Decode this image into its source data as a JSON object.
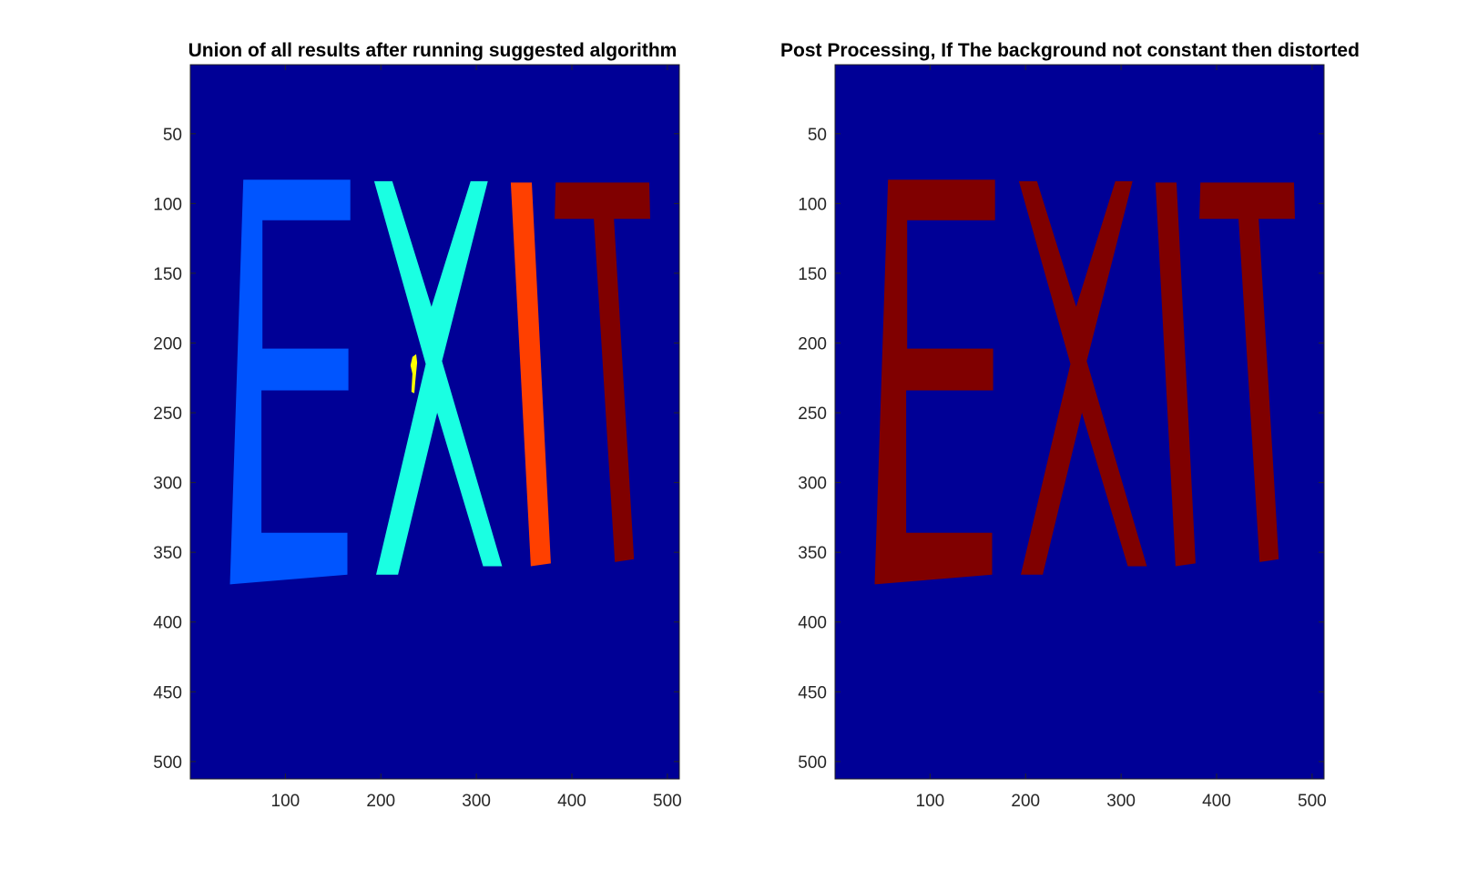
{
  "figure": {
    "background": "#ffffff",
    "axes_background": "#000096"
  },
  "chart_data": [
    {
      "type": "heatmap",
      "title": "Union of all results after running suggested algorithm",
      "xlabel": "",
      "ylabel": "",
      "xlim": [
        0.5,
        512.5
      ],
      "ylim": [
        0.5,
        512.5
      ],
      "y_reversed": true,
      "xticks": [
        100,
        200,
        300,
        400,
        500
      ],
      "yticks": [
        50,
        100,
        150,
        200,
        250,
        300,
        350,
        400,
        450,
        500
      ],
      "grid": false,
      "legend": "none",
      "background_color": "#000096",
      "regions": [
        {
          "letter": "E",
          "color": "#0055ff",
          "polygons": [
            [
              [
                56,
                83
              ],
              [
                168,
                83
              ],
              [
                168,
                112
              ],
              [
                76,
                112
              ],
              [
                76,
                204
              ],
              [
                166,
                204
              ],
              [
                166,
                234
              ],
              [
                75,
                234
              ],
              [
                75,
                336
              ],
              [
                165,
                336
              ],
              [
                165,
                366
              ],
              [
                42,
                373
              ]
            ]
          ]
        },
        {
          "letter": "X",
          "color": "#1affe2",
          "polygons": [
            [
              [
                193,
                84
              ],
              [
                212,
                84
              ],
              [
                253,
                174
              ],
              [
                294,
                84
              ],
              [
                312,
                84
              ],
              [
                264,
                213
              ],
              [
                327,
                360
              ],
              [
                307,
                360
              ],
              [
                259,
                250
              ],
              [
                218,
                366
              ],
              [
                195,
                366
              ],
              [
                247,
                215
              ]
            ]
          ]
        },
        {
          "letter": "I",
          "color": "#ff4000",
          "polygons": [
            [
              [
                336,
                85
              ],
              [
                358,
                85
              ],
              [
                378,
                358
              ],
              [
                357,
                360
              ]
            ]
          ]
        },
        {
          "letter": "T",
          "color": "#800000",
          "polygons": [
            [
              [
                383,
                85
              ],
              [
                481,
                85
              ],
              [
                482,
                111
              ],
              [
                444,
                111
              ],
              [
                465,
                355
              ],
              [
                445,
                357
              ],
              [
                423,
                111
              ],
              [
                382,
                111
              ]
            ]
          ]
        },
        {
          "letter": "",
          "color": "#ffff00",
          "polygons": [
            [
              [
                233,
                210
              ],
              [
                237,
                208
              ],
              [
                238,
                214
              ],
              [
                236,
                228
              ],
              [
                235,
                236
              ],
              [
                232,
                235
              ],
              [
                233,
                222
              ],
              [
                231,
                216
              ]
            ]
          ]
        }
      ]
    },
    {
      "type": "heatmap",
      "title": "Post Processing, If The background not constant then distorted",
      "xlabel": "",
      "ylabel": "",
      "xlim": [
        0.5,
        512.5
      ],
      "ylim": [
        0.5,
        512.5
      ],
      "y_reversed": true,
      "xticks": [
        100,
        200,
        300,
        400,
        500
      ],
      "yticks": [
        50,
        100,
        150,
        200,
        250,
        300,
        350,
        400,
        450,
        500
      ],
      "grid": false,
      "legend": "none",
      "background_color": "#000096",
      "regions": [
        {
          "letter": "E",
          "color": "#800000",
          "polygons": [
            [
              [
                56,
                83
              ],
              [
                168,
                83
              ],
              [
                168,
                112
              ],
              [
                76,
                112
              ],
              [
                76,
                204
              ],
              [
                166,
                204
              ],
              [
                166,
                234
              ],
              [
                75,
                234
              ],
              [
                75,
                336
              ],
              [
                165,
                336
              ],
              [
                165,
                366
              ],
              [
                42,
                373
              ]
            ]
          ]
        },
        {
          "letter": "X",
          "color": "#800000",
          "polygons": [
            [
              [
                193,
                84
              ],
              [
                212,
                84
              ],
              [
                253,
                174
              ],
              [
                294,
                84
              ],
              [
                312,
                84
              ],
              [
                264,
                213
              ],
              [
                327,
                360
              ],
              [
                307,
                360
              ],
              [
                259,
                250
              ],
              [
                218,
                366
              ],
              [
                195,
                366
              ],
              [
                247,
                215
              ]
            ]
          ]
        },
        {
          "letter": "I",
          "color": "#800000",
          "polygons": [
            [
              [
                336,
                85
              ],
              [
                358,
                85
              ],
              [
                378,
                358
              ],
              [
                357,
                360
              ]
            ]
          ]
        },
        {
          "letter": "T",
          "color": "#800000",
          "polygons": [
            [
              [
                383,
                85
              ],
              [
                481,
                85
              ],
              [
                482,
                111
              ],
              [
                444,
                111
              ],
              [
                465,
                355
              ],
              [
                445,
                357
              ],
              [
                423,
                111
              ],
              [
                382,
                111
              ]
            ]
          ]
        }
      ]
    }
  ]
}
